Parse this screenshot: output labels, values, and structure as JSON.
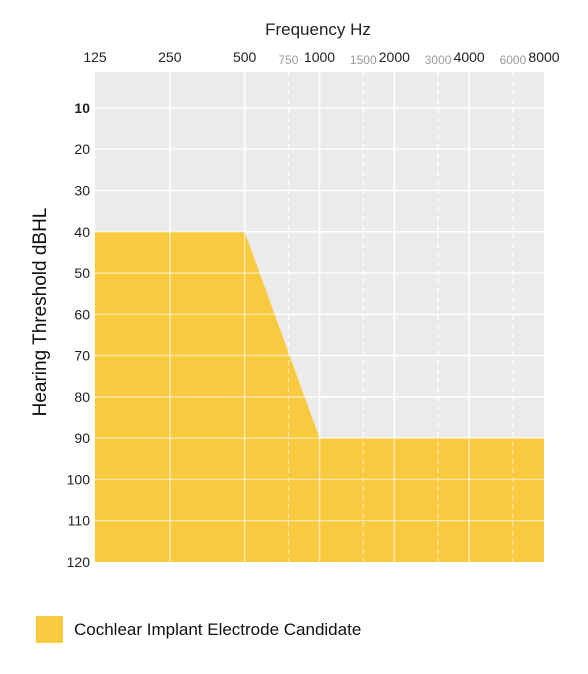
{
  "chart_data": {
    "type": "area",
    "title": "",
    "xlabel": "Frequency Hz",
    "ylabel": "Hearing Threshold dBHL",
    "x_scale": "log",
    "y_inverted": true,
    "xlim": [
      125,
      8000
    ],
    "ylim": [
      120,
      0
    ],
    "x_major_ticks": [
      125,
      250,
      500,
      1000,
      2000,
      4000,
      8000
    ],
    "x_major_tick_labels": [
      "125",
      "250",
      "500",
      "1000",
      "2000",
      "4000",
      "8000"
    ],
    "x_minor_ticks": [
      750,
      1500,
      3000,
      6000
    ],
    "x_minor_tick_labels": [
      "750",
      "1500",
      "3000",
      "6000"
    ],
    "y_ticks": [
      10,
      20,
      30,
      40,
      50,
      60,
      70,
      80,
      90,
      100,
      110,
      120
    ],
    "y_tick_labels": [
      "10",
      "20",
      "30",
      "40",
      "50",
      "60",
      "70",
      "80",
      "90",
      "100",
      "110",
      "120"
    ],
    "grid": true,
    "region": {
      "name": "Cochlear Implant Electrode Candidate",
      "color": "#f9c940",
      "upper_boundary": [
        {
          "x": 125,
          "y": 40
        },
        {
          "x": 500,
          "y": 40
        },
        {
          "x": 1000,
          "y": 90
        },
        {
          "x": 8000,
          "y": 90
        }
      ],
      "lower_y": 120
    },
    "legend_position": "bottom-left"
  },
  "colors": {
    "plot_background": "#ebebeb",
    "grid": "#ffffff",
    "fill": "#f9c940"
  },
  "legend": {
    "label": "Cochlear Implant Electrode Candidate"
  }
}
